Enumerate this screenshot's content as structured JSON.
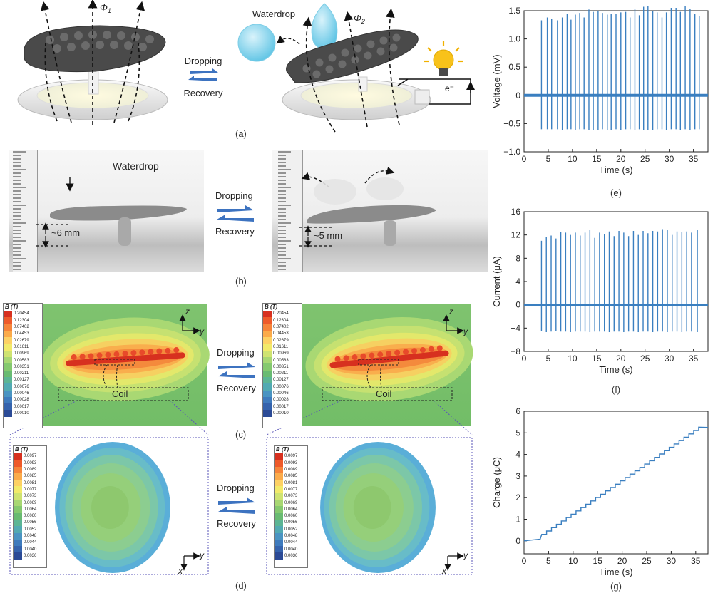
{
  "labels": {
    "a": "(a)",
    "b": "(b)",
    "c": "(c)",
    "d": "(d)",
    "e": "(e)",
    "f": "(f)",
    "g": "(g)"
  },
  "state_arrows": {
    "forward": "Dropping",
    "back": "Recovery"
  },
  "panel_a": {
    "waterdrop": "Waterdrop",
    "phi1": "Φ",
    "phi1_sub": "1",
    "phi2": "Φ",
    "phi2_sub": "2",
    "electron": "e⁻"
  },
  "panel_b": {
    "waterdrop": "Waterdrop",
    "gap_before": "~6 mm",
    "gap_after": "~5 mm"
  },
  "panel_c": {
    "legend_title": "B (T)",
    "legend_values": [
      "0.20454",
      "0.12304",
      "0.07402",
      "0.04453",
      "0.02679",
      "0.01611",
      "0.00969",
      "0.00583",
      "0.00351",
      "0.00211",
      "0.00127",
      "0.00076",
      "0.00046",
      "0.00028",
      "0.00017",
      "0.00010"
    ],
    "legend_colors": [
      "#d7301f",
      "#ee5a2a",
      "#f6843a",
      "#fbab4b",
      "#fdd164",
      "#f2ea6a",
      "#cfe371",
      "#a8d773",
      "#85c96f",
      "#69bb72",
      "#5cb594",
      "#52aab2",
      "#4a94c2",
      "#3f7bbd",
      "#3563ad",
      "#2b4a96"
    ],
    "axis_up": "z",
    "axis_right": "y",
    "coil": "Coil"
  },
  "panel_d": {
    "legend_title": "B (T)",
    "legend_values": [
      "0.0097",
      "0.0093",
      "0.0089",
      "0.0085",
      "0.0081",
      "0.0077",
      "0.0073",
      "0.0069",
      "0.0064",
      "0.0060",
      "0.0056",
      "0.0052",
      "0.0048",
      "0.0044",
      "0.0040",
      "0.0036"
    ],
    "legend_colors": [
      "#d7301f",
      "#ee5a2a",
      "#f6843a",
      "#fbab4b",
      "#fdd164",
      "#f2ea6a",
      "#cfe371",
      "#a8d773",
      "#85c96f",
      "#69bb72",
      "#5cb594",
      "#52aab2",
      "#4a94c2",
      "#3f7bbd",
      "#3563ad",
      "#2b4a96"
    ],
    "axis_down": "x",
    "axis_right": "y"
  },
  "chart_data": [
    {
      "type": "line",
      "id": "e",
      "title": "",
      "xlabel": "Time (s)",
      "ylabel": "Voltage (mV)",
      "xlim": [
        0,
        38
      ],
      "ylim": [
        -1.0,
        1.5
      ],
      "xticks": [
        0,
        5,
        10,
        15,
        20,
        25,
        30,
        35
      ],
      "yticks": [
        -1.0,
        -0.5,
        0,
        0.5,
        1.0,
        1.5
      ],
      "ytick_labels": [
        "−1.0",
        "−0.5",
        "0",
        "0.5",
        "1.0",
        "1.5"
      ],
      "color": "#3a7fc0",
      "baseline": 0,
      "spikes": {
        "x": [
          3.6,
          4.8,
          5.7,
          6.9,
          7.9,
          8.9,
          9.7,
          10.6,
          11.5,
          12.4,
          13.4,
          14.3,
          15.3,
          16.2,
          17.2,
          18.0,
          19.0,
          20.0,
          21.0,
          21.9,
          22.9,
          23.8,
          24.7,
          25.6,
          26.6,
          27.5,
          28.5,
          29.4,
          30.4,
          31.4,
          32.3,
          33.3,
          34.3,
          35.3,
          36.2
        ],
        "max": [
          1.33,
          1.38,
          1.36,
          1.33,
          1.38,
          1.45,
          1.34,
          1.43,
          1.46,
          1.38,
          1.52,
          1.48,
          1.5,
          1.46,
          1.43,
          1.45,
          1.45,
          1.47,
          1.48,
          1.38,
          1.53,
          1.42,
          1.57,
          1.58,
          1.5,
          1.47,
          1.38,
          1.47,
          1.55,
          1.55,
          1.48,
          1.58,
          1.53,
          1.45,
          1.4
        ],
        "min": [
          -0.6,
          -0.6,
          -0.6,
          -0.6,
          -0.61,
          -0.6,
          -0.6,
          -0.61,
          -0.6,
          -0.6,
          -0.61,
          -0.62,
          -0.61,
          -0.6,
          -0.61,
          -0.61,
          -0.6,
          -0.61,
          -0.6,
          -0.6,
          -0.61,
          -0.6,
          -0.61,
          -0.61,
          -0.61,
          -0.6,
          -0.6,
          -0.61,
          -0.6,
          -0.6,
          -0.61,
          -0.6,
          -0.61,
          -0.6,
          -0.6
        ]
      }
    },
    {
      "type": "line",
      "id": "f",
      "title": "",
      "xlabel": "Time (s)",
      "ylabel": "Current (μA)",
      "xlim": [
        0,
        38
      ],
      "ylim": [
        -8,
        16
      ],
      "xticks": [
        0,
        5,
        10,
        15,
        20,
        25,
        30,
        35
      ],
      "yticks": [
        -8,
        -4,
        0,
        4,
        8,
        12,
        16
      ],
      "ytick_labels": [
        "−8",
        "−4",
        "0",
        "4",
        "8",
        "12",
        "16"
      ],
      "color": "#3a7fc0",
      "baseline": 0,
      "spikes": {
        "x": [
          3.6,
          4.6,
          5.6,
          6.6,
          7.6,
          8.6,
          9.6,
          10.6,
          11.6,
          12.6,
          13.6,
          14.6,
          15.6,
          16.6,
          17.6,
          18.6,
          19.6,
          20.6,
          21.6,
          22.6,
          23.6,
          24.6,
          25.6,
          26.6,
          27.6,
          28.6,
          29.6,
          30.6,
          31.6,
          32.6,
          33.6,
          34.6,
          35.8
        ],
        "max": [
          11.0,
          11.7,
          11.9,
          11.4,
          12.5,
          12.4,
          12.0,
          12.4,
          11.9,
          12.4,
          12.9,
          11.5,
          12.4,
          12.2,
          12.6,
          11.8,
          12.7,
          12.4,
          11.8,
          12.7,
          12.0,
          12.7,
          12.3,
          12.7,
          12.6,
          13.0,
          12.9,
          12.0,
          12.6,
          12.5,
          12.6,
          12.4,
          12.9
        ],
        "min": [
          -4.5,
          -4.7,
          -4.6,
          -4.5,
          -4.6,
          -4.6,
          -4.7,
          -4.6,
          -4.6,
          -4.6,
          -4.7,
          -4.6,
          -4.6,
          -4.6,
          -4.7,
          -4.6,
          -4.6,
          -4.7,
          -4.6,
          -4.6,
          -4.7,
          -4.6,
          -4.6,
          -4.7,
          -4.6,
          -4.6,
          -4.7,
          -4.6,
          -4.6,
          -4.7,
          -4.6,
          -4.6,
          -4.7
        ]
      }
    },
    {
      "type": "line",
      "id": "g",
      "title": "",
      "xlabel": "Time (s)",
      "ylabel": "Charge (μC)",
      "xlim": [
        0,
        37.5
      ],
      "ylim": [
        -0.6,
        6
      ],
      "xticks": [
        0,
        5,
        10,
        15,
        20,
        25,
        30,
        35
      ],
      "yticks": [
        0,
        1,
        2,
        3,
        4,
        5,
        6
      ],
      "ytick_labels": [
        "0",
        "1",
        "2",
        "3",
        "4",
        "5",
        "6"
      ],
      "color": "#3a7fc0",
      "staircase": {
        "start": [
          0,
          0
        ],
        "pre_ramp_end": [
          3.3,
          0.08
        ],
        "first_step_x": 3.6,
        "first_step_y": 0.3,
        "step_x": 1.0,
        "step_y": 0.155,
        "steps": 32,
        "end": [
          37.5,
          5.25
        ]
      }
    }
  ]
}
